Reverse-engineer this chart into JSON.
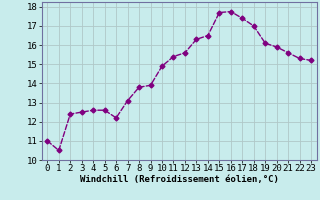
{
  "x": [
    0,
    1,
    2,
    3,
    4,
    5,
    6,
    7,
    8,
    9,
    10,
    11,
    12,
    13,
    14,
    15,
    16,
    17,
    18,
    19,
    20,
    21,
    22,
    23
  ],
  "y": [
    11.0,
    10.5,
    12.4,
    12.5,
    12.6,
    12.6,
    12.2,
    13.1,
    13.8,
    13.9,
    14.9,
    15.4,
    15.6,
    16.3,
    16.5,
    17.7,
    17.75,
    17.4,
    17.0,
    16.1,
    15.9,
    15.6,
    15.3,
    15.2
  ],
  "line_color": "#800080",
  "marker": "D",
  "markersize": 2.5,
  "bg_color": "#c8ecec",
  "grid_color": "#b0c8c8",
  "xlabel": "Windchill (Refroidissement éolien,°C)",
  "xlim": [
    -0.5,
    23.5
  ],
  "ylim": [
    10.0,
    18.25
  ],
  "yticks": [
    10,
    11,
    12,
    13,
    14,
    15,
    16,
    17,
    18
  ],
  "xticks": [
    0,
    1,
    2,
    3,
    4,
    5,
    6,
    7,
    8,
    9,
    10,
    11,
    12,
    13,
    14,
    15,
    16,
    17,
    18,
    19,
    20,
    21,
    22,
    23
  ],
  "xlabel_fontsize": 6.5,
  "tick_fontsize": 6.5,
  "linewidth": 1.0
}
